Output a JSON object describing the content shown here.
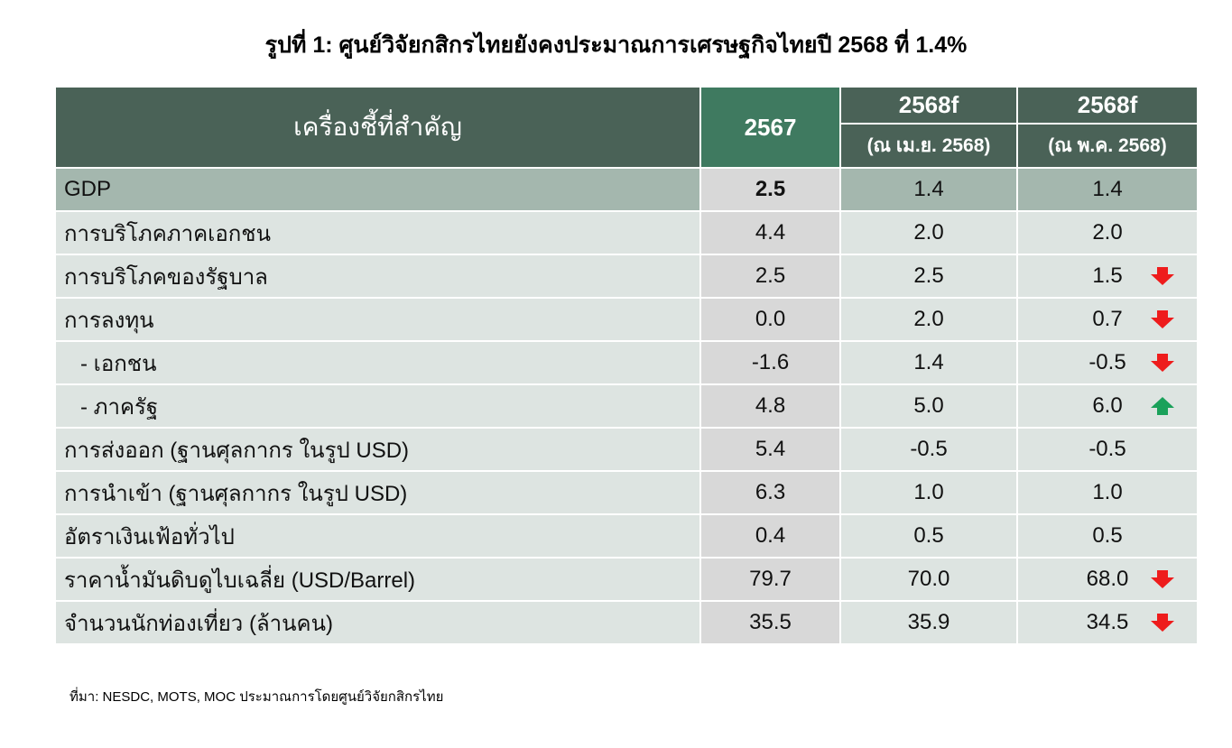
{
  "title": "รูปที่ 1: ศูนย์วิจัยกสิกรไทยยังคงประมาณการเศรษฐกิจไทยปี 2568 ที่ 1.4%",
  "table": {
    "header": {
      "indicator": "เครื่องชี้ที่สำคัญ",
      "y2567": "2567",
      "y2568_apr": "2568f",
      "y2568_apr_sub": "(ณ เม.ย. 2568)",
      "y2568_may": "2568f",
      "y2568_may_sub": "(ณ พ.ค. 2568)"
    },
    "rows": [
      {
        "name": "GDP",
        "v2567": "2.5",
        "v2568_apr": "1.4",
        "v2568_may": "1.4",
        "change": "none"
      },
      {
        "name": "การบริโภคภาคเอกชน",
        "v2567": "4.4",
        "v2568_apr": "2.0",
        "v2568_may": "2.0",
        "change": "none"
      },
      {
        "name": "การบริโภคของรัฐบาล",
        "v2567": "2.5",
        "v2568_apr": "2.5",
        "v2568_may": "1.5",
        "change": "down"
      },
      {
        "name": "การลงทุน",
        "v2567": "0.0",
        "v2568_apr": "2.0",
        "v2568_may": "0.7",
        "change": "down"
      },
      {
        "name": "- เอกชน",
        "v2567": "-1.6",
        "v2568_apr": "1.4",
        "v2568_may": "-0.5",
        "change": "down"
      },
      {
        "name": "- ภาครัฐ",
        "v2567": "4.8",
        "v2568_apr": "5.0",
        "v2568_may": "6.0",
        "change": "up"
      },
      {
        "name": "การส่งออก (ฐานศุลกากร ในรูป USD)",
        "v2567": "5.4",
        "v2568_apr": "-0.5",
        "v2568_may": "-0.5",
        "change": "none"
      },
      {
        "name": "การนำเข้า (ฐานศุลกากร ในรูป USD)",
        "v2567": "6.3",
        "v2568_apr": "1.0",
        "v2568_may": "1.0",
        "change": "none"
      },
      {
        "name": "อัตราเงินเฟ้อทั่วไป",
        "v2567": "0.4",
        "v2568_apr": "0.5",
        "v2568_may": "0.5",
        "change": "none"
      },
      {
        "name": "ราคาน้ำมันดิบดูไบเฉลี่ย (USD/Barrel)",
        "v2567": "79.7",
        "v2568_apr": "70.0",
        "v2568_may": "68.0",
        "change": "down"
      },
      {
        "name": "จำนวนนักท่องเที่ยว (ล้านคน)",
        "v2567": "35.5",
        "v2568_apr": "35.9",
        "v2568_may": "34.5",
        "change": "down"
      }
    ]
  },
  "source": "ที่มา: NESDC, MOTS, MOC ประมาณการโดยศูนย์วิจัยกสิกรไทย",
  "icons": {
    "down": "arrow-down-icon",
    "up": "arrow-up-icon"
  },
  "colors": {
    "header_bg": "#4a6257",
    "header_2567_bg": "#3f7a60",
    "gdp_row_bg": "#a4b7ae",
    "row_bg": "#dde4e1",
    "col2567_bg": "#d8d8d8",
    "down_arrow": "#ee1c1c",
    "up_arrow": "#1aa15a"
  }
}
